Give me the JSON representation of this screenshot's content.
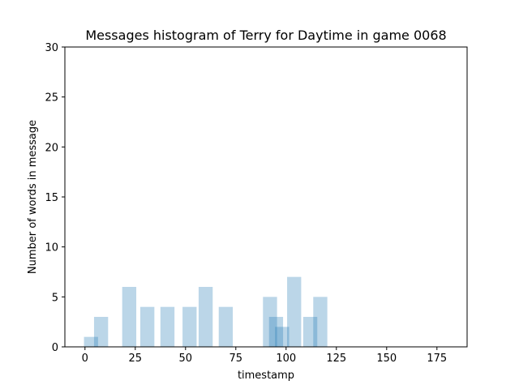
{
  "chart_data": {
    "type": "bar",
    "title": "Messages histogram of Terry for Daytime in game 0068",
    "xlabel": "timestamp",
    "ylabel": "Number of words in message",
    "xlim": [
      -10,
      190
    ],
    "ylim": [
      0,
      30
    ],
    "xticks": [
      0,
      25,
      50,
      75,
      100,
      125,
      150,
      175
    ],
    "yticks": [
      0,
      5,
      10,
      15,
      20,
      25,
      30
    ],
    "bar_width": 7,
    "bar_color": "#1f77b4",
    "bar_alpha": 0.3,
    "grid": false,
    "bars": [
      {
        "x": 3,
        "value": 1
      },
      {
        "x": 8,
        "value": 3
      },
      {
        "x": 22,
        "value": 6
      },
      {
        "x": 31,
        "value": 4
      },
      {
        "x": 41,
        "value": 4
      },
      {
        "x": 52,
        "value": 4
      },
      {
        "x": 60,
        "value": 6
      },
      {
        "x": 70,
        "value": 4
      },
      {
        "x": 92,
        "value": 5
      },
      {
        "x": 95,
        "value": 3
      },
      {
        "x": 98,
        "value": 2
      },
      {
        "x": 104,
        "value": 7
      },
      {
        "x": 112,
        "value": 3
      },
      {
        "x": 117,
        "value": 5
      }
    ]
  }
}
